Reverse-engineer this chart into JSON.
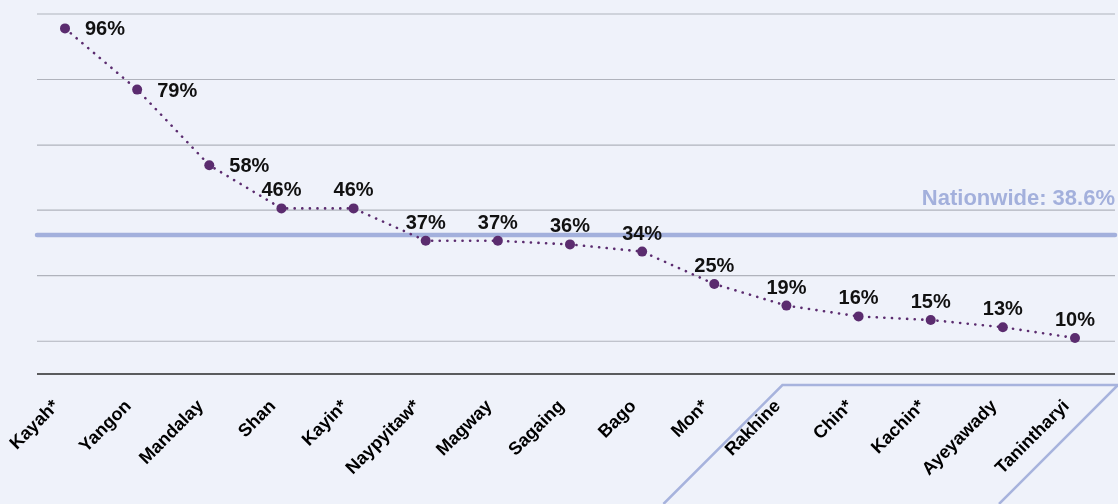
{
  "chart_data": {
    "type": "line",
    "categories": [
      "Kayah*",
      "Yangon",
      "Mandalay",
      "Shan",
      "Kayin*",
      "Naypyitaw*",
      "Magway",
      "Sagaing",
      "Bago",
      "Mon*",
      "Rakhine",
      "Chin*",
      "Kachin*",
      "Ayeyawady",
      "Tanintharyi"
    ],
    "values": [
      96,
      79,
      58,
      46,
      46,
      37,
      37,
      36,
      34,
      25,
      19,
      16,
      15,
      13,
      10
    ],
    "value_labels": [
      "96%",
      "79%",
      "58%",
      "46%",
      "46%",
      "37%",
      "37%",
      "36%",
      "34%",
      "25%",
      "19%",
      "16%",
      "15%",
      "13%",
      "10%"
    ],
    "color": "#5b2c6f",
    "marker": "circle",
    "line_style": "dotted",
    "ylim": [
      0,
      100
    ],
    "yticks": [
      {
        "value": 9.1,
        "label": null
      },
      {
        "value": 27.3,
        "label": null
      },
      {
        "value": 45.5,
        "label": null
      },
      {
        "value": 63.6,
        "label": null
      },
      {
        "value": 81.8,
        "label": null
      },
      {
        "value": 100,
        "label": null
      }
    ],
    "grid": "y",
    "tick_labels": "x",
    "ref_lines": [
      {
        "axis": "y",
        "value": 38.6,
        "label": "Nationwide: 38.6%",
        "color": "#a3b0dc"
      }
    ]
  }
}
